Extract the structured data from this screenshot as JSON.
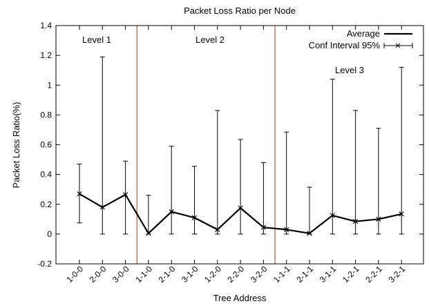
{
  "chart_data": {
    "type": "line",
    "title": "Packet Loss Ratio per Node",
    "xlabel": "Tree Address",
    "ylabel": "Packet Loss Ratio(%)",
    "ylim": [
      -0.2,
      1.4
    ],
    "yticks": [
      "-0.2",
      "0",
      "0.2",
      "0.4",
      "0.6",
      "0.8",
      "1",
      "1.2",
      "1.4"
    ],
    "categories": [
      "1-0-0",
      "2-0-0",
      "3-0-0",
      "1-1-0",
      "2-1-0",
      "3-1-0",
      "1-2-0",
      "2-2-0",
      "3-2-0",
      "1-1-1",
      "2-1-1",
      "3-1-1",
      "1-2-1",
      "2-2-1",
      "3-2-1"
    ],
    "series": [
      {
        "name": "Average",
        "values": [
          0.27,
          0.18,
          0.265,
          0.005,
          0.15,
          0.11,
          0.03,
          0.175,
          0.045,
          0.03,
          0.005,
          0.125,
          0.085,
          0.1,
          0.135
        ]
      },
      {
        "name": "Conf Interval 95%",
        "lower": [
          0.075,
          0.0,
          0.0,
          0.0,
          0.0,
          0.0,
          0.0,
          0.0,
          0.0,
          0.0,
          0.0,
          0.0,
          0.0,
          0.0,
          0.0
        ],
        "upper": [
          0.47,
          1.19,
          0.49,
          0.26,
          0.59,
          0.455,
          0.83,
          0.635,
          0.48,
          0.685,
          0.315,
          1.04,
          0.83,
          0.71,
          1.12
        ]
      }
    ],
    "grid": false,
    "legend": "top-right",
    "dividers_after": [
      "3-0-0",
      "3-2-0"
    ],
    "divider_color": "#d2521e",
    "level_labels": [
      "Level 1",
      "Level 2",
      "Level 3"
    ]
  }
}
